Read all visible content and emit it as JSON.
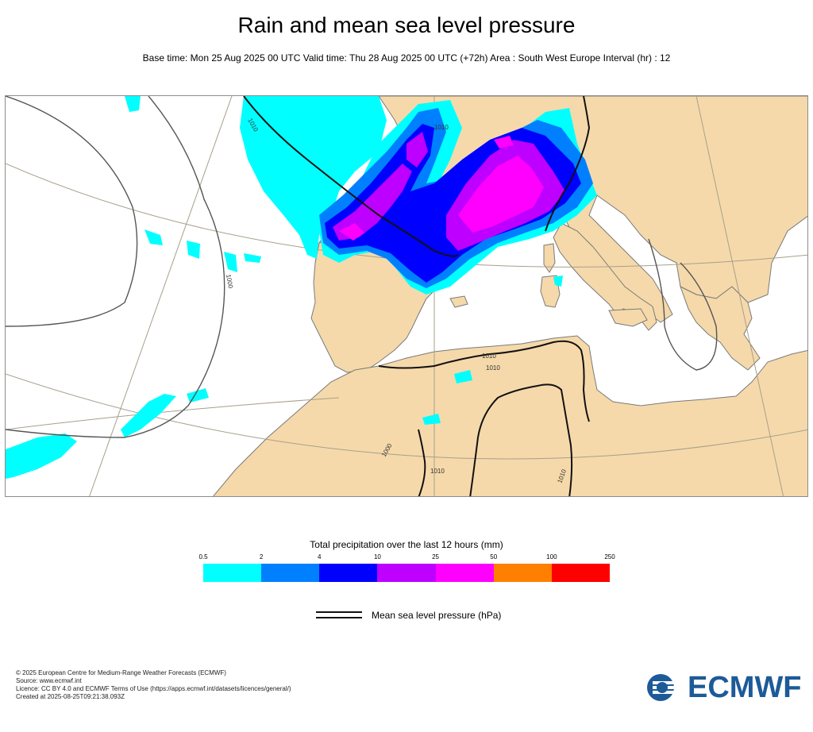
{
  "header": {
    "title": "Rain and mean sea level pressure",
    "subtitle": "Base time: Mon 25 Aug 2025 00 UTC Valid time: Thu 28 Aug 2025 00 UTC (+72h) Area : South West Europe Interval (hr) : 12"
  },
  "map": {
    "contour_labels": [
      "1010",
      "1000",
      "1000",
      "1010",
      "1010",
      "1010",
      "1010",
      "1010"
    ],
    "colors": {
      "land": "#f5d9aa",
      "sea": "#ffffff",
      "coastline": "#555555",
      "graticule": "#a89f8c",
      "isobar": "#111111"
    }
  },
  "legend": {
    "title": "Total precipitation over the last 12 hours (mm)",
    "thresholds": [
      "0.5",
      "2",
      "4",
      "10",
      "25",
      "50",
      "100",
      "250"
    ],
    "colors": [
      "#00ffff",
      "#0080ff",
      "#0000ff",
      "#bd00ff",
      "#ff00ff",
      "#ff8000",
      "#ff0000"
    ],
    "isobar_label": "Mean sea level pressure (hPa)"
  },
  "footer": {
    "lines": [
      "© 2025 European Centre for Medium-Range Weather Forecasts (ECMWF)",
      "Source: www.ecmwf.int",
      "Licence: CC BY 4.0 and ECMWF Terms of Use (https://apps.ecmwf.int/datasets/licences/general/)",
      "Created at 2025-08-25T09:21:38.093Z"
    ],
    "logo_text": "ECMWF"
  }
}
